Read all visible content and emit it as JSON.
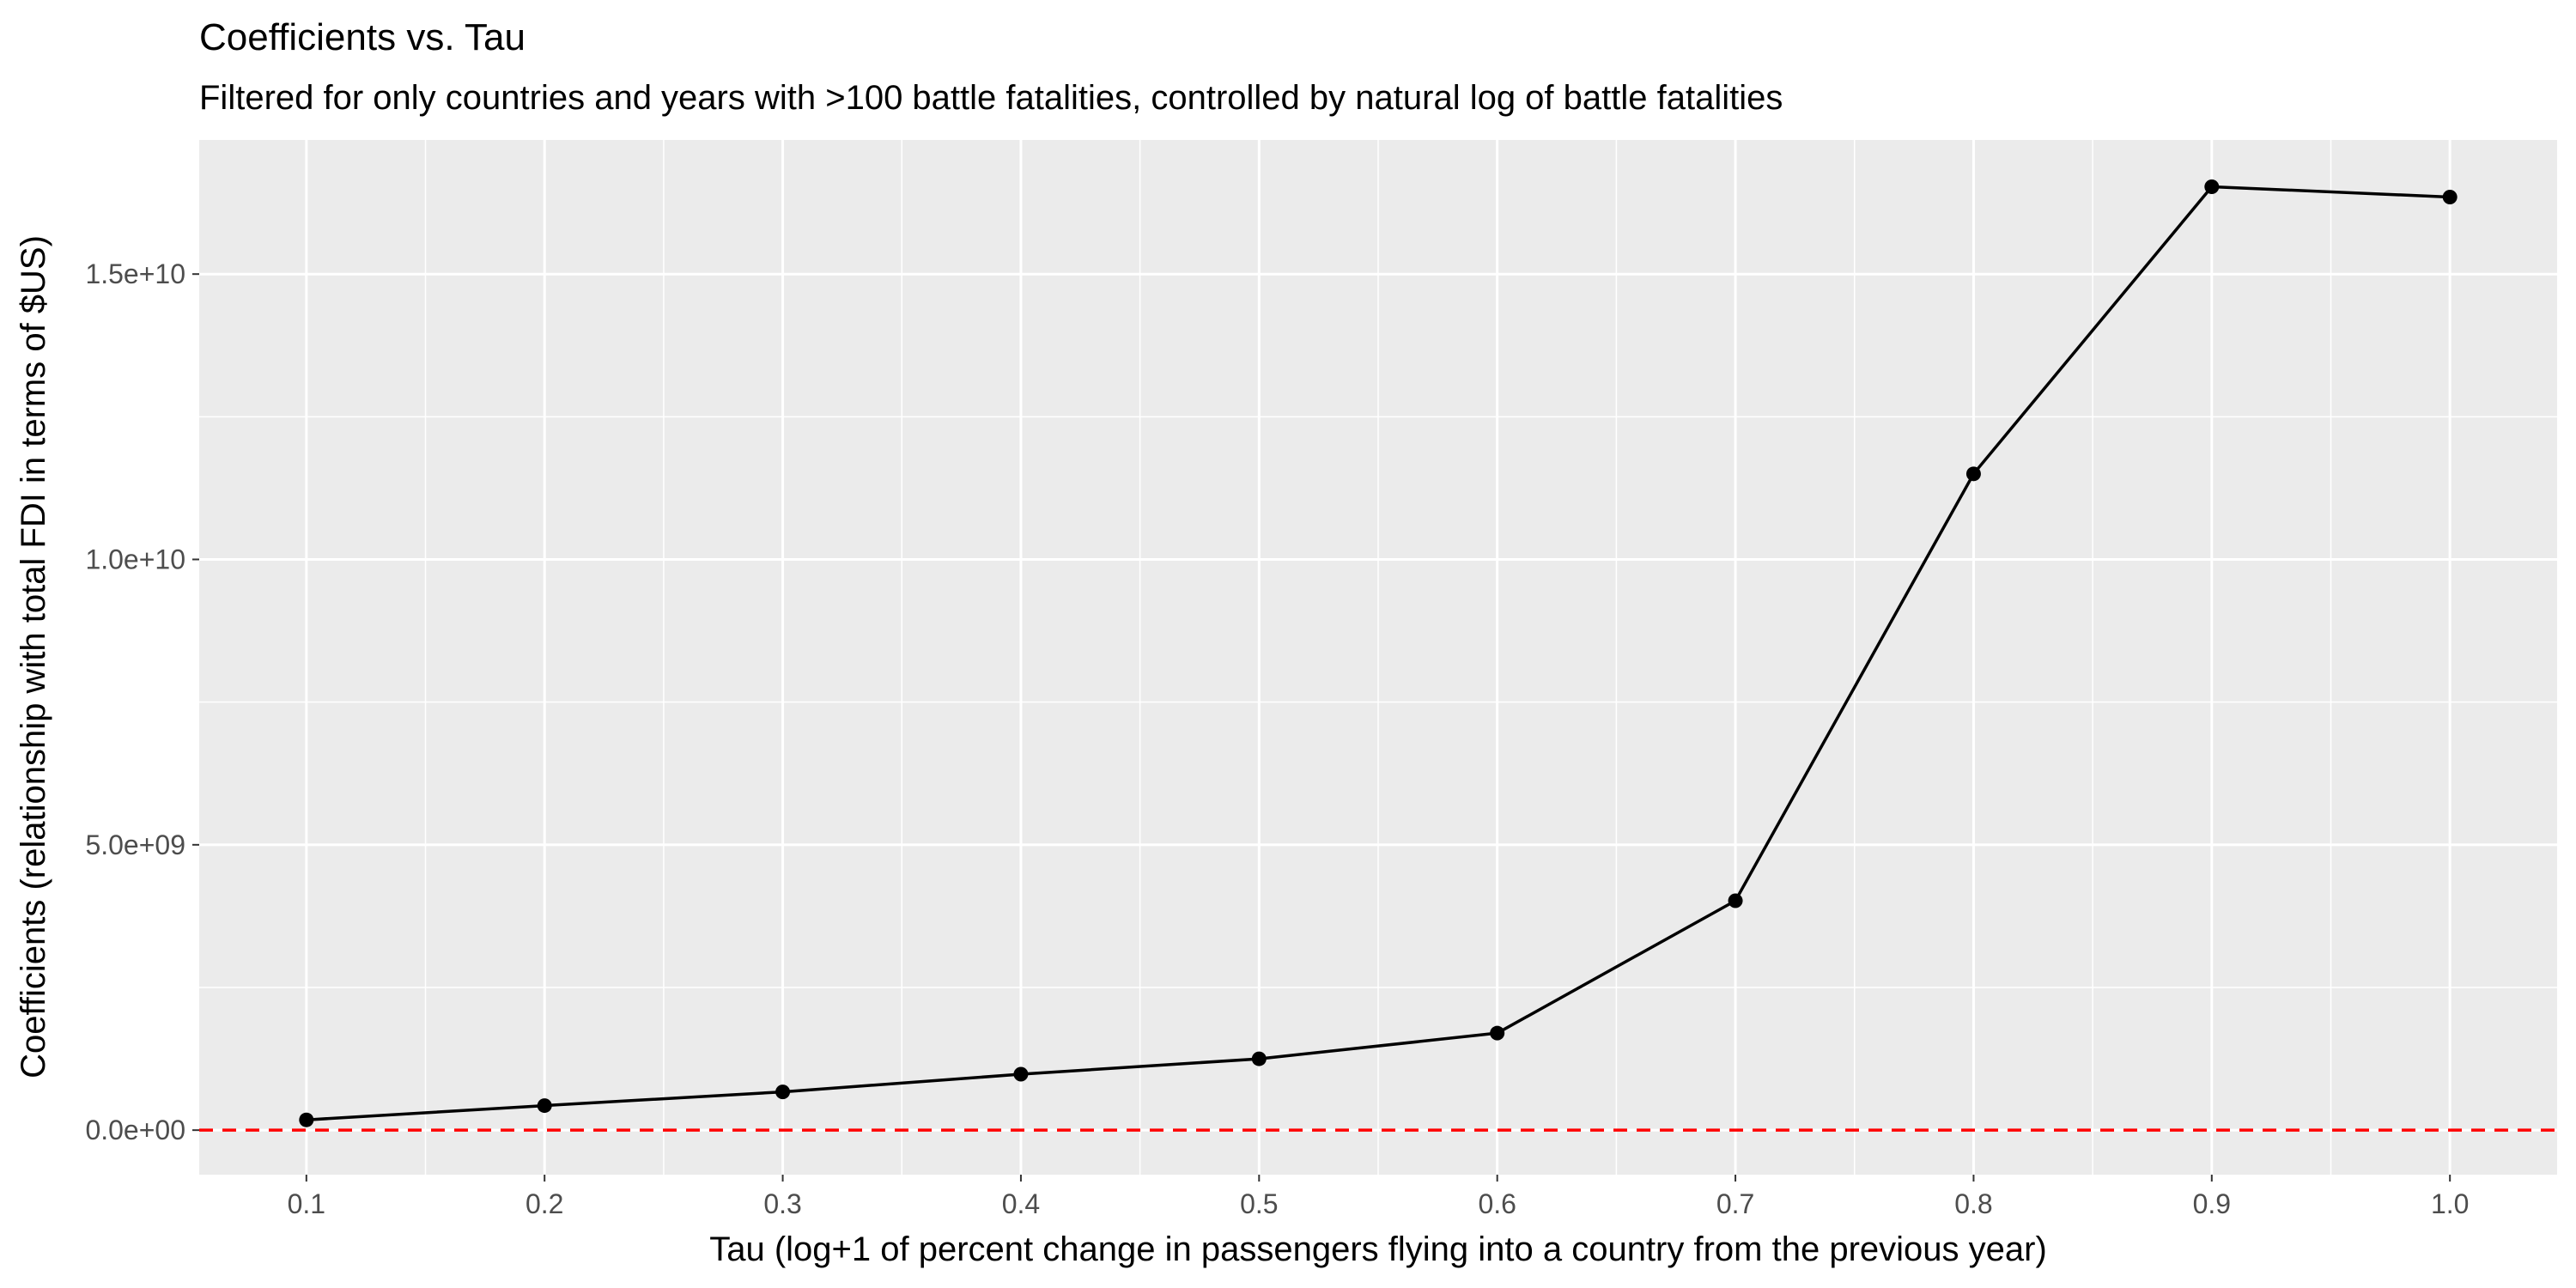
{
  "chart_data": {
    "type": "line",
    "title": "Coefficients vs. Tau",
    "subtitle": "Filtered for only countries and years with >100 battle fatalities, controlled by natural log of battle fatalities",
    "xlabel": "Tau (log+1 of percent change in passengers flying into a country from the previous year)",
    "ylabel": "Coefficients (relationship with total FDI in terms of $US)",
    "x": [
      0.1,
      0.2,
      0.3,
      0.4,
      0.5,
      0.6,
      0.7,
      0.8,
      0.9,
      1.0
    ],
    "series": [
      {
        "values": [
          180000000,
          430000000,
          670000000,
          980000000,
          1250000000,
          1700000000,
          4020000000,
          11500000000,
          16530000000,
          16350000000
        ]
      }
    ],
    "xlim": [
      0.055,
      1.045
    ],
    "ylim": [
      -780000000,
      17350000000
    ],
    "x_ticks": [
      {
        "value": 0.1,
        "label": "0.1"
      },
      {
        "value": 0.2,
        "label": "0.2"
      },
      {
        "value": 0.3,
        "label": "0.3"
      },
      {
        "value": 0.4,
        "label": "0.4"
      },
      {
        "value": 0.5,
        "label": "0.5"
      },
      {
        "value": 0.6,
        "label": "0.6"
      },
      {
        "value": 0.7,
        "label": "0.7"
      },
      {
        "value": 0.8,
        "label": "0.8"
      },
      {
        "value": 0.9,
        "label": "0.9"
      },
      {
        "value": 1.0,
        "label": "1.0"
      }
    ],
    "y_ticks": [
      {
        "value": 0,
        "label": "0.0e+00"
      },
      {
        "value": 5000000000,
        "label": "5.0e+09"
      },
      {
        "value": 10000000000,
        "label": "1.0e+10"
      },
      {
        "value": 15000000000,
        "label": "1.5e+10"
      }
    ],
    "reference_line": {
      "y": 0,
      "style": "dashed",
      "color": "#ff0000"
    },
    "grid": true,
    "colors": {
      "panel_background": "#ebebeb",
      "grid_line": "#ffffff",
      "series_line": "#000000",
      "point": "#000000",
      "tick_text": "#4d4d4d",
      "tick_mark": "#333333"
    }
  }
}
